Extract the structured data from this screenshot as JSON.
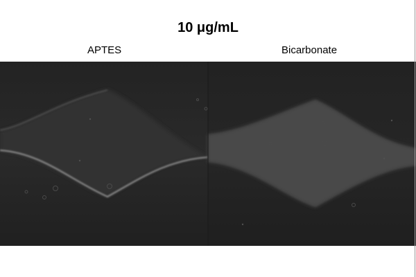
{
  "title": "10 μg/mL",
  "panels": [
    {
      "label": "APTES"
    },
    {
      "label": "Bicarbonate"
    }
  ],
  "colors": {
    "background": "#ffffff",
    "image_dark": "#1f1f1f",
    "channel_fill": "#474747",
    "channel_edge": "#8a8a8a"
  }
}
